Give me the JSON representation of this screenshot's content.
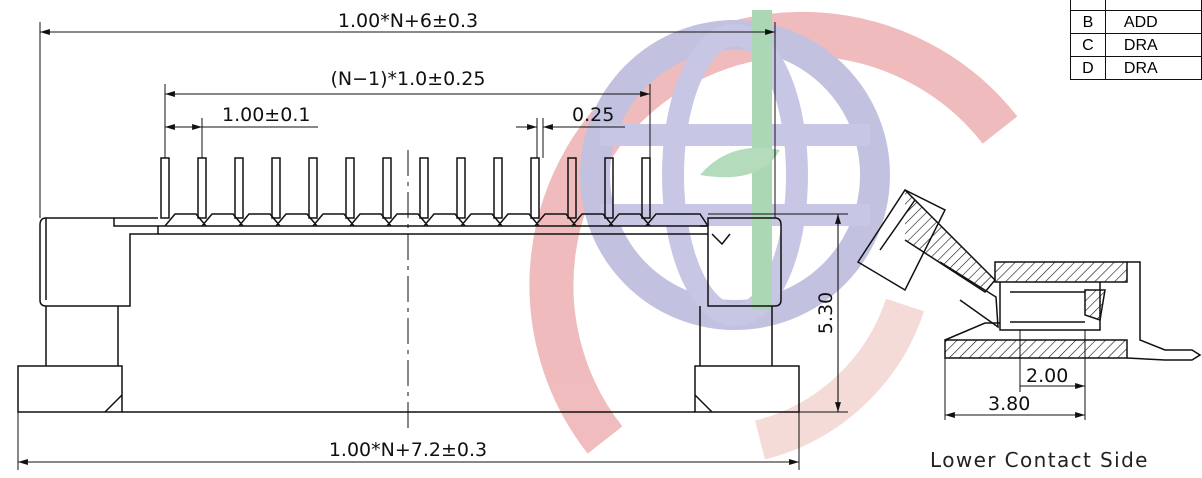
{
  "dimensions": {
    "overall_width": "1.00*N+6±0.3",
    "pitch_span": "(N−1)*1.0±0.25",
    "pitch": "1.00±0.1",
    "pin_width": "0.25",
    "height": "5.30",
    "base_width": "1.00*N+7.2±0.3",
    "side_inner": "2.00",
    "side_outer": "3.80"
  },
  "revision_table": {
    "rows": [
      {
        "letter": "B",
        "desc": "ADD"
      },
      {
        "letter": "C",
        "desc": "DRA"
      },
      {
        "letter": "D",
        "desc": "DRA"
      }
    ]
  },
  "side_view": {
    "caption": "Lower Contact Side"
  },
  "colors": {
    "line": "#111111",
    "watermark_red": "#d9454b",
    "watermark_blue": "#6f6fb4",
    "watermark_green": "#3c9a4a"
  }
}
